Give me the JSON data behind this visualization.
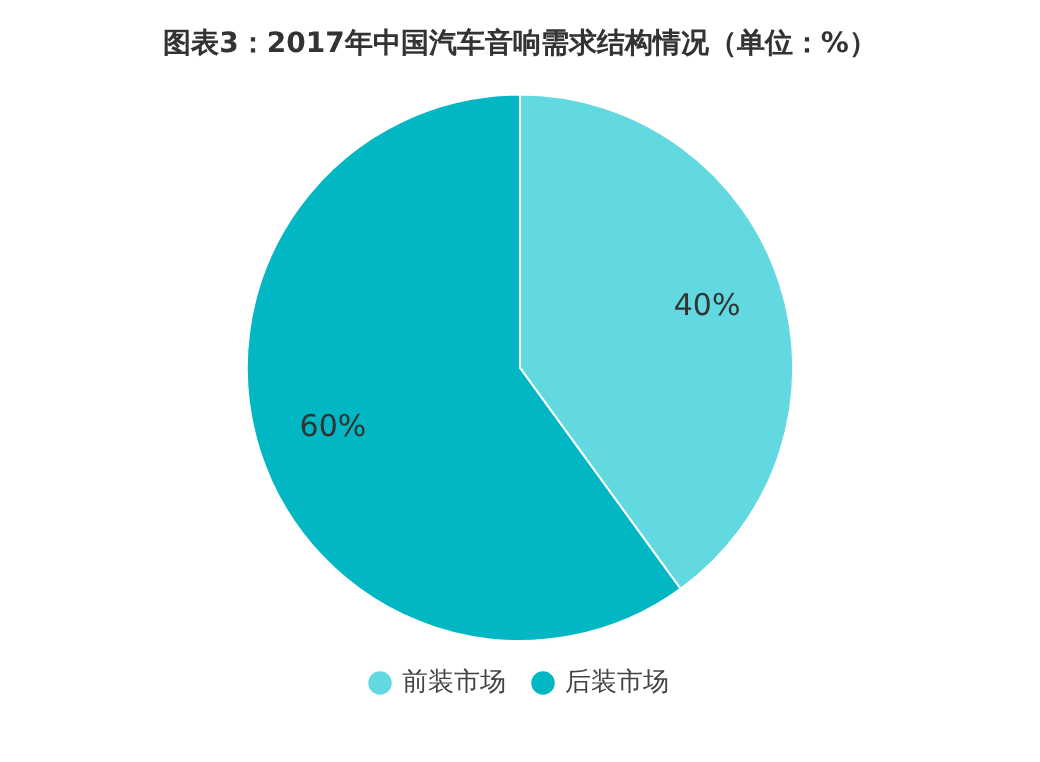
{
  "chart_data": {
    "type": "pie",
    "title": "图表3：2017年中国汽车音响需求结构情况（单位：%）",
    "categories": [
      "前装市场",
      "后装市场"
    ],
    "values": [
      40,
      60
    ],
    "colors": [
      "#62d8e0",
      "#00b7c3"
    ],
    "value_labels": [
      "40%",
      "60%"
    ],
    "legend": "bottom"
  }
}
